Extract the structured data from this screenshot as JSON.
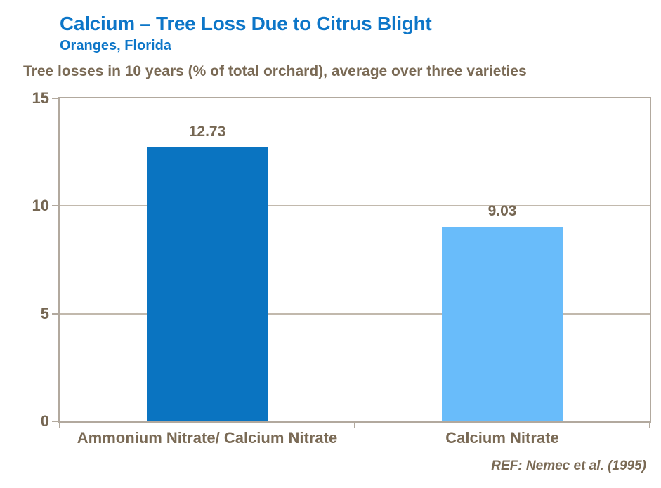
{
  "header": {
    "title": "Calcium – Tree Loss Due to Citrus Blight",
    "subtitle": "Oranges, Florida"
  },
  "chart_data": {
    "type": "bar",
    "title": "Calcium – Tree Loss Due to Citrus Blight",
    "subtitle": "Oranges, Florida",
    "axis_note": "Tree losses in 10 years (% of total orchard), average over three varieties",
    "categories": [
      "Ammonium Nitrate/ Calcium Nitrate",
      "Calcium Nitrate"
    ],
    "values": [
      12.73,
      9.03
    ],
    "value_labels": [
      "12.73",
      "9.03"
    ],
    "bar_colors": [
      "#0A74C1",
      "#69BCFA"
    ],
    "ylabel": "",
    "xlabel": "",
    "ylim": [
      0,
      15
    ],
    "yticks": [
      0,
      5,
      10,
      15
    ],
    "gridlines": [
      5,
      10
    ],
    "grid": "horizontal",
    "legend": "none",
    "reference": "REF: Nemec et al. (1995)"
  },
  "colors": {
    "title_blue": "#0D76C8",
    "text_brown": "#7A6A55",
    "axis_border": "#B2A99E",
    "gridline": "#C2B9AD",
    "bar_dark_blue": "#0A74C1",
    "bar_light_blue": "#69BCFA",
    "background": "#FFFFFF"
  }
}
